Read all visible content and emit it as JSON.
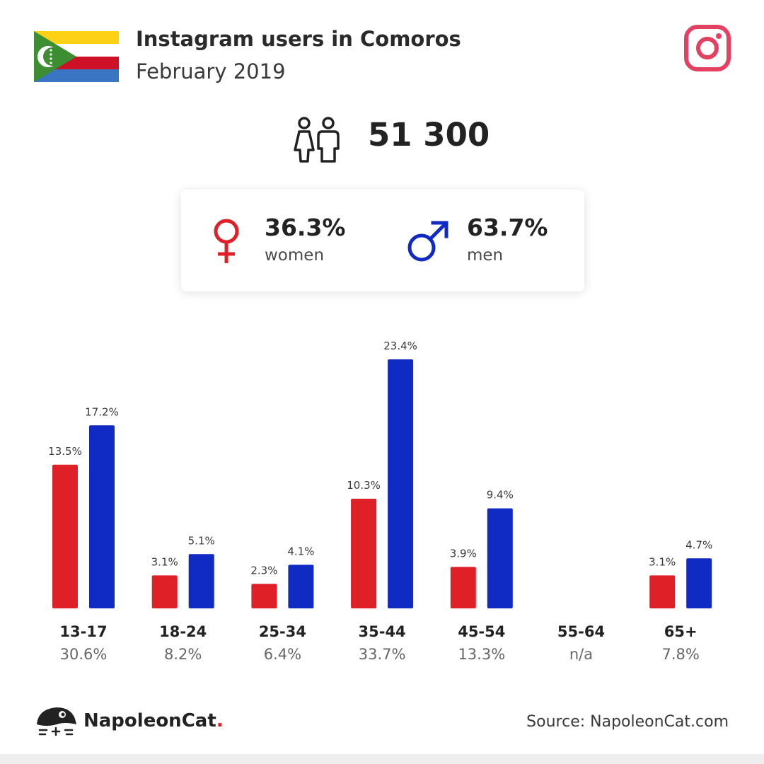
{
  "header": {
    "title": "Instagram users in Comoros",
    "subtitle": "February 2019",
    "flag_icon": "comoros-flag-icon",
    "brand_icon": "instagram-icon"
  },
  "total": {
    "icon": "people-icon",
    "value": "51 300"
  },
  "gender": {
    "women": {
      "percent": "36.3%",
      "label": "women",
      "icon": "female-symbol-icon",
      "color": "#e02027"
    },
    "men": {
      "percent": "63.7%",
      "label": "men",
      "icon": "male-symbol-icon",
      "color": "#0f2bc4"
    }
  },
  "chart_data": {
    "type": "bar",
    "categories": [
      "13-17",
      "18-24",
      "25-34",
      "35-44",
      "45-54",
      "55-64",
      "65+"
    ],
    "category_totals": [
      "30.6%",
      "8.2%",
      "6.4%",
      "33.7%",
      "13.3%",
      "n/a",
      "7.8%"
    ],
    "series": [
      {
        "values": [
          13.5,
          3.1,
          2.3,
          10.3,
          3.9,
          null,
          3.1
        ],
        "labels": [
          "13.5%",
          "3.1%",
          "2.3%",
          "10.3%",
          "3.9%",
          "",
          "3.1%"
        ],
        "color": "#e02027"
      },
      {
        "values": [
          17.2,
          5.1,
          4.1,
          23.4,
          9.4,
          null,
          4.7
        ],
        "labels": [
          "17.2%",
          "5.1%",
          "4.1%",
          "23.4%",
          "9.4%",
          "",
          "4.7%"
        ],
        "color": "#0f2bc4"
      }
    ],
    "ylim": [
      0,
      23.4
    ],
    "grid": false,
    "legend": "none"
  },
  "footer": {
    "brand_name": "NapoleonCat",
    "brand_dot": ".",
    "logo_icon": "napoleoncat-logo-icon",
    "source": "Source: NapoleonCat.com"
  }
}
